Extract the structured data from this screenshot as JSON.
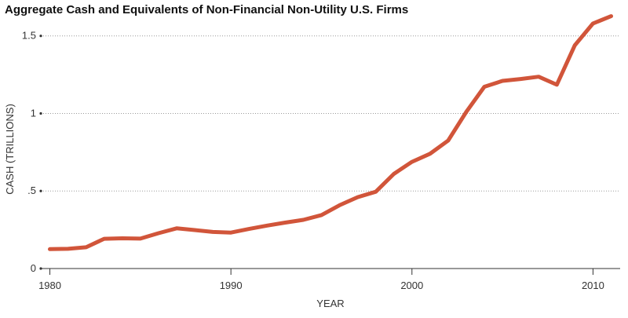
{
  "chart_data": {
    "type": "line",
    "title": "Aggregate Cash and Equivalents of Non-Financial Non-Utility U.S. Firms",
    "xlabel": "YEAR",
    "ylabel": "CASH (TRILLIONS)",
    "xlim": [
      1979.5,
      2011.5
    ],
    "ylim": [
      0,
      1.62
    ],
    "x_ticks": [
      {
        "value": 1980,
        "label": "1980"
      },
      {
        "value": 1990,
        "label": "1990"
      },
      {
        "value": 2000,
        "label": "2000"
      },
      {
        "value": 2010,
        "label": "2010"
      }
    ],
    "y_ticks": [
      {
        "value": 0,
        "label": "0"
      },
      {
        "value": 0.5,
        "label": ".5"
      },
      {
        "value": 1,
        "label": "1"
      },
      {
        "value": 1.5,
        "label": "1.5"
      }
    ],
    "grid": "horizontal-dotted",
    "series": [
      {
        "color": "#d1553a",
        "x": [
          1980,
          1981,
          1982,
          1983,
          1984,
          1985,
          1986,
          1987,
          1988,
          1989,
          1990,
          1991,
          1992,
          1993,
          1994,
          1995,
          1996,
          1997,
          1998,
          1999,
          2000,
          2001,
          2002,
          2003,
          2004,
          2005,
          2006,
          2007,
          2008,
          2009,
          2010,
          2011
        ],
        "y": [
          0.125,
          0.127,
          0.137,
          0.192,
          0.195,
          0.193,
          0.228,
          0.259,
          0.248,
          0.236,
          0.232,
          0.255,
          0.277,
          0.296,
          0.314,
          0.345,
          0.408,
          0.46,
          0.495,
          0.61,
          0.688,
          0.74,
          0.825,
          1.01,
          1.172,
          1.21,
          1.222,
          1.237,
          1.185,
          1.44,
          1.58,
          1.627
        ]
      }
    ]
  }
}
